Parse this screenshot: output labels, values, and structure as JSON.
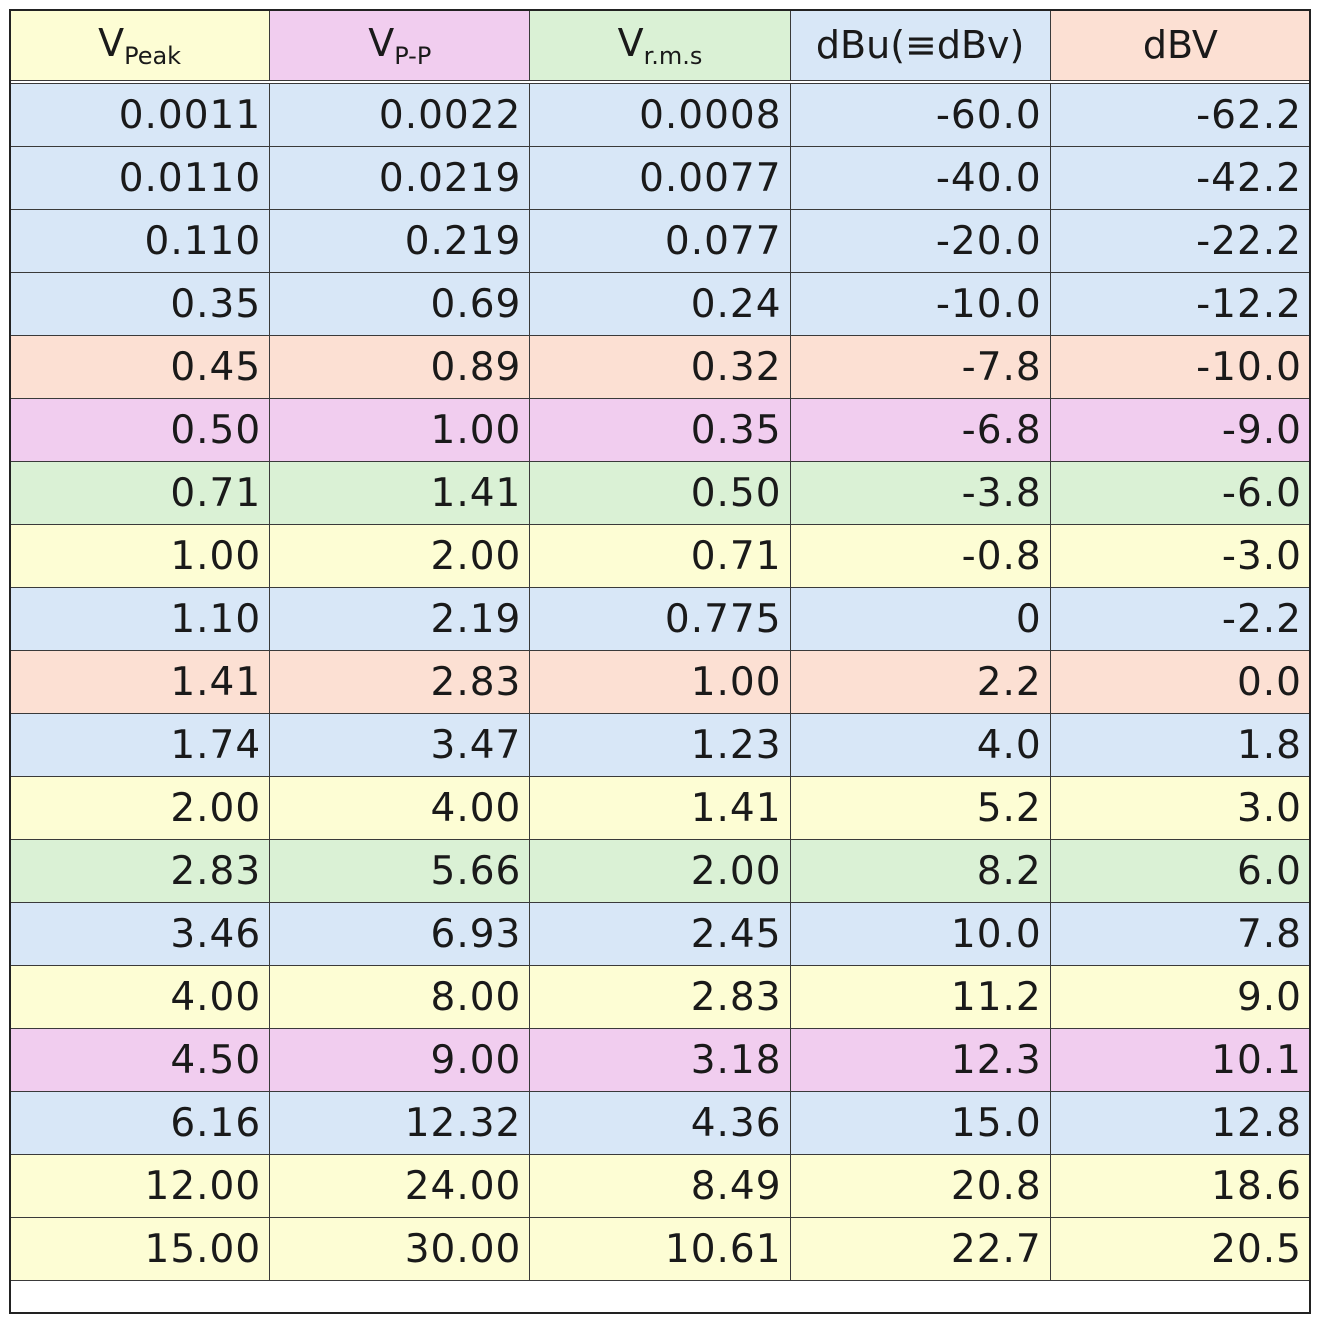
{
  "chart_data": {
    "type": "table",
    "columns": [
      {
        "main": "V",
        "sub": "Peak"
      },
      {
        "main": "V",
        "sub": "P-P"
      },
      {
        "main": "V",
        "sub": "r.m.s"
      },
      {
        "main": "dBu(≡dBv)",
        "sub": ""
      },
      {
        "main": "dBV",
        "sub": ""
      }
    ],
    "header_colors": [
      "yellow",
      "pink",
      "green",
      "blue",
      "peach"
    ],
    "palette": {
      "yellow": "#fdfdd4",
      "pink": "#f1cdef",
      "green": "#daf1d5",
      "blue": "#d8e7f7",
      "peach": "#fce0d3"
    },
    "rows": [
      {
        "color": "blue",
        "cells": [
          "0.0011",
          "0.0022",
          "0.0008",
          "-60.0",
          "-62.2"
        ]
      },
      {
        "color": "blue",
        "cells": [
          "0.0110",
          "0.0219",
          "0.0077",
          "-40.0",
          "-42.2"
        ]
      },
      {
        "color": "blue",
        "cells": [
          "0.110",
          "0.219",
          "0.077",
          "-20.0",
          "-22.2"
        ]
      },
      {
        "color": "blue",
        "cells": [
          "0.35",
          "0.69",
          "0.24",
          "-10.0",
          "-12.2"
        ]
      },
      {
        "color": "peach",
        "cells": [
          "0.45",
          "0.89",
          "0.32",
          "-7.8",
          "-10.0"
        ]
      },
      {
        "color": "pink",
        "cells": [
          "0.50",
          "1.00",
          "0.35",
          "-6.8",
          "-9.0"
        ]
      },
      {
        "color": "green",
        "cells": [
          "0.71",
          "1.41",
          "0.50",
          "-3.8",
          "-6.0"
        ]
      },
      {
        "color": "yellow",
        "cells": [
          "1.00",
          "2.00",
          "0.71",
          "-0.8",
          "-3.0"
        ]
      },
      {
        "color": "blue",
        "cells": [
          "1.10",
          "2.19",
          "0.775",
          "0",
          "-2.2"
        ]
      },
      {
        "color": "peach",
        "cells": [
          "1.41",
          "2.83",
          "1.00",
          "2.2",
          "0.0"
        ]
      },
      {
        "color": "blue",
        "cells": [
          "1.74",
          "3.47",
          "1.23",
          "4.0",
          "1.8"
        ]
      },
      {
        "color": "yellow",
        "cells": [
          "2.00",
          "4.00",
          "1.41",
          "5.2",
          "3.0"
        ]
      },
      {
        "color": "green",
        "cells": [
          "2.83",
          "5.66",
          "2.00",
          "8.2",
          "6.0"
        ]
      },
      {
        "color": "blue",
        "cells": [
          "3.46",
          "6.93",
          "2.45",
          "10.0",
          "7.8"
        ]
      },
      {
        "color": "yellow",
        "cells": [
          "4.00",
          "8.00",
          "2.83",
          "11.2",
          "9.0"
        ]
      },
      {
        "color": "pink",
        "cells": [
          "4.50",
          "9.00",
          "3.18",
          "12.3",
          "10.1"
        ]
      },
      {
        "color": "blue",
        "cells": [
          "6.16",
          "12.32",
          "4.36",
          "15.0",
          "12.8"
        ]
      },
      {
        "color": "yellow",
        "cells": [
          "12.00",
          "24.00",
          "8.49",
          "20.8",
          "18.6"
        ]
      },
      {
        "color": "yellow",
        "cells": [
          "15.00",
          "30.00",
          "10.61",
          "22.7",
          "20.5"
        ]
      }
    ]
  }
}
